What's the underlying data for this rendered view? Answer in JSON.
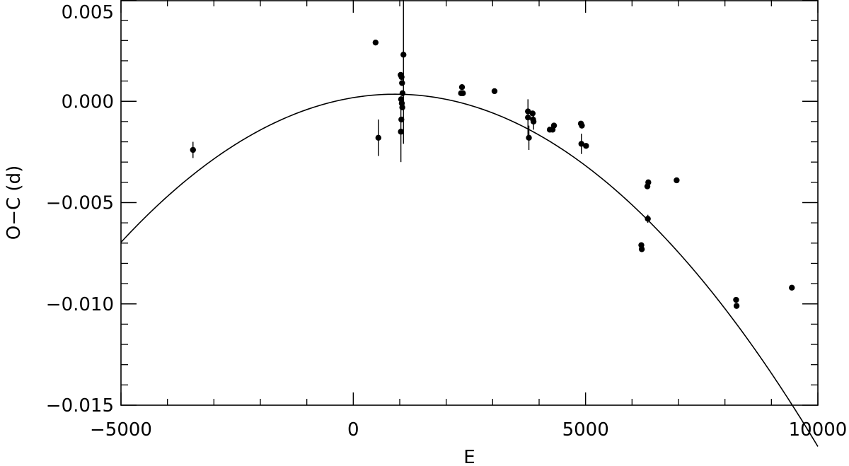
{
  "chart_data": {
    "type": "scatter",
    "title": "",
    "xlabel": "E",
    "ylabel": "O−C (d)",
    "xlim": [
      -5000,
      10000
    ],
    "ylim": [
      -0.015,
      0.005
    ],
    "grid": false,
    "x_ticks": [
      {
        "value": -5000,
        "label": "−5000"
      },
      {
        "value": 0,
        "label": "0"
      },
      {
        "value": 5000,
        "label": "5000"
      },
      {
        "value": 10000,
        "label": "10000"
      }
    ],
    "y_ticks": [
      {
        "value": 0.005,
        "label": "0.005"
      },
      {
        "value": 0.0,
        "label": "0.000"
      },
      {
        "value": -0.005,
        "label": "−0.005"
      },
      {
        "value": -0.01,
        "label": "−0.010"
      },
      {
        "value": -0.015,
        "label": "−0.015"
      }
    ],
    "x_minor_step": 1000,
    "y_minor_step": 0.001,
    "fit_curve": {
      "type": "quadratic",
      "vertex": [
        900,
        0.00035
      ],
      "curvature": -2.1e-10,
      "x_range": [
        -5000,
        10000
      ]
    },
    "points": [
      {
        "x": -3450,
        "y": -0.0024,
        "err": 0.0004
      },
      {
        "x": 480,
        "y": 0.0029,
        "err": 0.0001
      },
      {
        "x": 540,
        "y": -0.0018,
        "err": 0.0009
      },
      {
        "x": 1020,
        "y": 0.0013,
        "err": 0.0001
      },
      {
        "x": 1040,
        "y": 0.0012,
        "err": 0.0001
      },
      {
        "x": 1050,
        "y": 0.0009,
        "err": 0.0001
      },
      {
        "x": 1060,
        "y": 0.0004,
        "err": 0.0001
      },
      {
        "x": 1030,
        "y": 0.0001,
        "err": 0.0001
      },
      {
        "x": 1045,
        "y": -0.0001,
        "err": 0.0001
      },
      {
        "x": 1055,
        "y": -0.0003,
        "err": 0.0001
      },
      {
        "x": 1035,
        "y": -0.0009,
        "err": 0.0001
      },
      {
        "x": 1025,
        "y": -0.0015,
        "err": 0.0015
      },
      {
        "x": 1080,
        "y": 0.0023,
        "err": 0.0044
      },
      {
        "x": 2340,
        "y": 0.0007,
        "err": 0.0001
      },
      {
        "x": 2320,
        "y": 0.0004,
        "err": 0.0001
      },
      {
        "x": 2360,
        "y": 0.0004,
        "err": 0.0001
      },
      {
        "x": 3040,
        "y": 0.0005,
        "err": 0.0001
      },
      {
        "x": 3760,
        "y": -0.0005,
        "err": 0.0001
      },
      {
        "x": 3760,
        "y": -0.0008,
        "err": 0.0009
      },
      {
        "x": 3780,
        "y": -0.0018,
        "err": 0.0006
      },
      {
        "x": 3860,
        "y": -0.0006,
        "err": 0.0001
      },
      {
        "x": 3870,
        "y": -0.0009,
        "err": 0.0001
      },
      {
        "x": 3880,
        "y": -0.001,
        "err": 0.0004
      },
      {
        "x": 4230,
        "y": -0.0014,
        "err": 0.0001
      },
      {
        "x": 4290,
        "y": -0.0014,
        "err": 0.0001
      },
      {
        "x": 4320,
        "y": -0.0012,
        "err": 0.0001
      },
      {
        "x": 4900,
        "y": -0.0011,
        "err": 0.0001
      },
      {
        "x": 4920,
        "y": -0.0012,
        "err": 0.0001
      },
      {
        "x": 4910,
        "y": -0.0021,
        "err": 0.0005
      },
      {
        "x": 5010,
        "y": -0.0022,
        "err": 0.0001
      },
      {
        "x": 6200,
        "y": -0.0071,
        "err": 0.0001
      },
      {
        "x": 6210,
        "y": -0.0073,
        "err": 0.0001
      },
      {
        "x": 6330,
        "y": -0.0042,
        "err": 0.0001
      },
      {
        "x": 6350,
        "y": -0.004,
        "err": 0.0001
      },
      {
        "x": 6340,
        "y": -0.0058,
        "err": 0.0002
      },
      {
        "x": 6960,
        "y": -0.0039,
        "err": 0.0001
      },
      {
        "x": 8240,
        "y": -0.0098,
        "err": 0.0001
      },
      {
        "x": 8250,
        "y": -0.0101,
        "err": 0.0001
      },
      {
        "x": 9440,
        "y": -0.0092,
        "err": 0.0001
      }
    ]
  }
}
